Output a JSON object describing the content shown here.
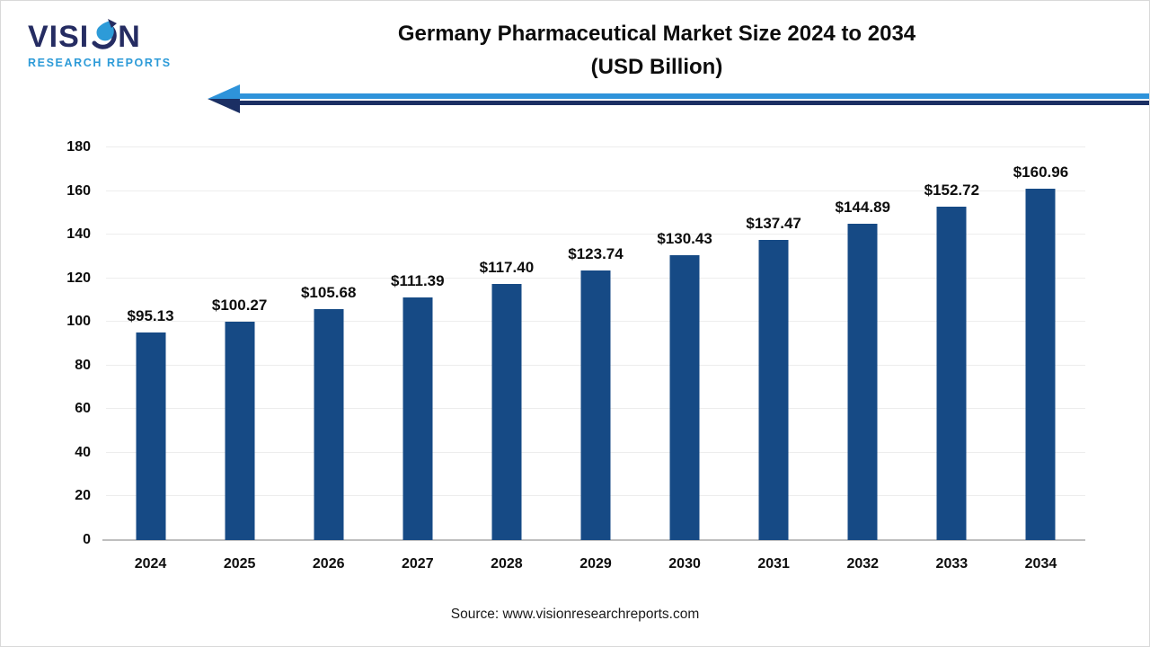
{
  "logo": {
    "line1_part1": "VISI",
    "line1_part2": "N",
    "line2": "RESEARCH REPORTS",
    "navy": "#252C62",
    "blue": "#2D9BD8"
  },
  "header": {
    "title_line1": "Germany Pharmaceutical Market Size 2024 to 2034",
    "title_line2": "(USD Billion)",
    "arrow_light_color": "#2E93DA",
    "arrow_dark_color": "#1B2F63"
  },
  "footer": {
    "source": "Source: www.visionresearchreports.com"
  },
  "chart_data": {
    "type": "bar",
    "title": "Germany Pharmaceutical Market Size 2024 to 2034 (USD Billion)",
    "categories": [
      "2024",
      "2025",
      "2026",
      "2027",
      "2028",
      "2029",
      "2030",
      "2031",
      "2032",
      "2033",
      "2034"
    ],
    "values": [
      95.13,
      100.27,
      105.68,
      111.39,
      117.4,
      123.74,
      130.43,
      137.47,
      144.89,
      152.72,
      160.96
    ],
    "value_labels": [
      "$95.13",
      "$100.27",
      "$105.68",
      "$111.39",
      "$117.40",
      "$123.74",
      "$130.43",
      "$137.47",
      "$144.89",
      "$152.72",
      "$160.96"
    ],
    "xlabel": "",
    "ylabel": "",
    "ylim": [
      0,
      180
    ],
    "yticks": [
      0,
      20,
      40,
      60,
      80,
      100,
      120,
      140,
      160,
      180
    ],
    "grid": true,
    "legend": "none",
    "bar_color": "#164A85",
    "gridline_color": "#ededed",
    "axis_line_color": "#bfbfbf"
  }
}
